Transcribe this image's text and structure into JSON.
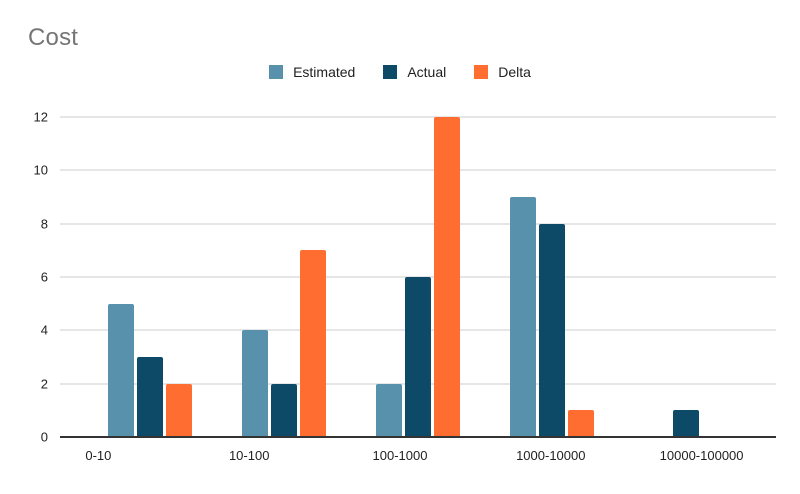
{
  "title": "Cost",
  "legend": [
    {
      "label": "Estimated",
      "color": "#5891AC"
    },
    {
      "label": "Actual",
      "color": "#0D4A68"
    },
    {
      "label": "Delta",
      "color": "#FF6D31"
    }
  ],
  "chart_data": {
    "type": "bar",
    "title": "Cost",
    "categories": [
      "0-10",
      "10-100",
      "100-1000",
      "1000-10000",
      "10000-100000"
    ],
    "series": [
      {
        "name": "Estimated",
        "color": "#5891AC",
        "values": [
          5,
          4,
          2,
          9,
          0
        ]
      },
      {
        "name": "Actual",
        "color": "#0D4A68",
        "values": [
          3,
          2,
          6,
          8,
          1
        ]
      },
      {
        "name": "Delta",
        "color": "#FF6D31",
        "values": [
          2,
          7,
          12,
          1,
          0
        ]
      }
    ],
    "xlabel": "",
    "ylabel": "",
    "ylim": [
      0,
      12
    ],
    "yticks": [
      0,
      2,
      4,
      6,
      8,
      10,
      12
    ],
    "grid": true,
    "legend_position": "top",
    "colors": {
      "title_text": "#757575",
      "axis_text": "#222222",
      "gridline": "#e6e6e6",
      "baseline": "#333333",
      "background": "#ffffff"
    }
  }
}
